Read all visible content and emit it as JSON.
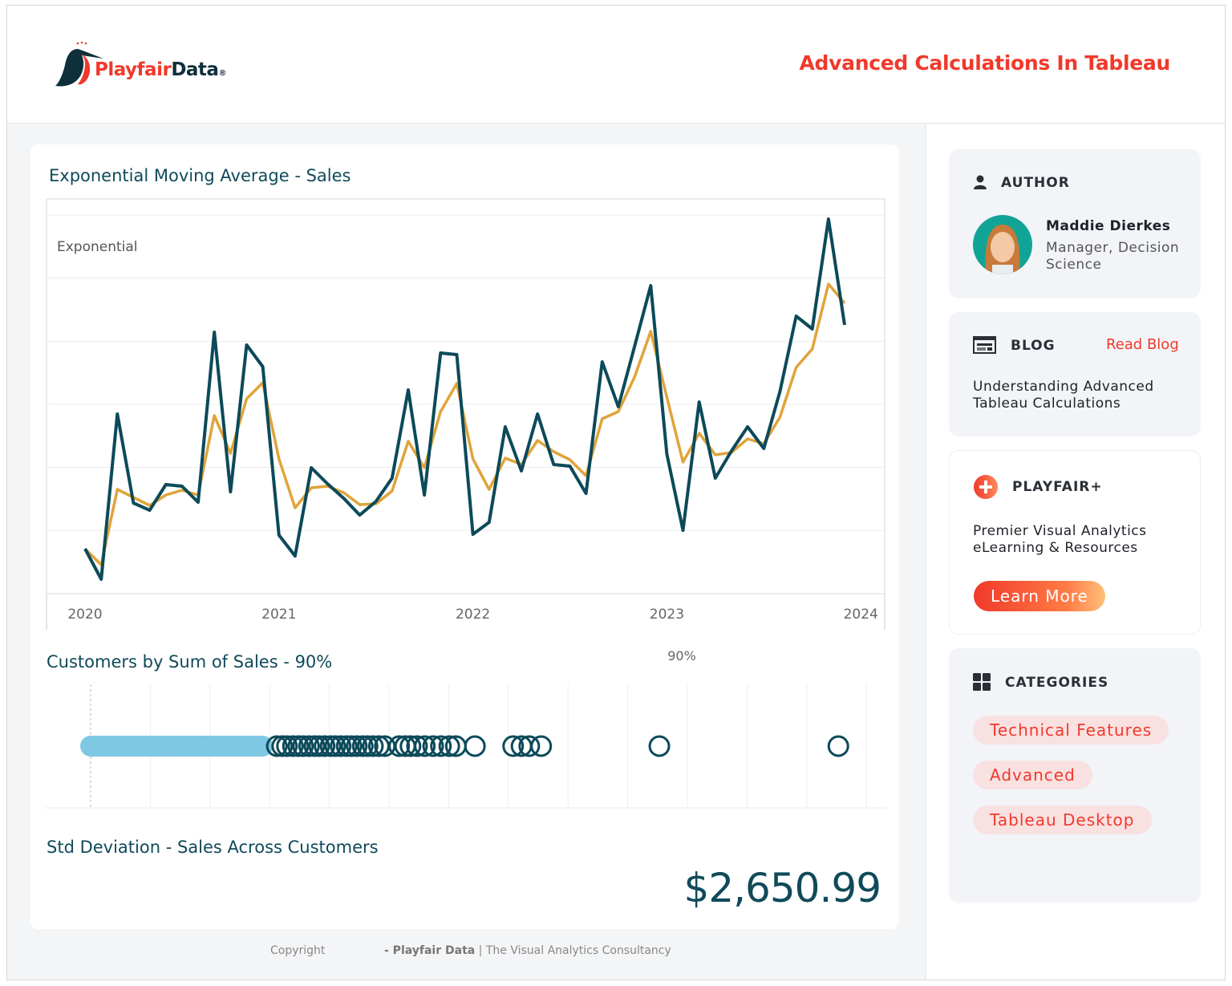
{
  "header": {
    "logo_text_a": "Playfair",
    "logo_text_b": "Data",
    "title": "Advanced Calculations In Tableau"
  },
  "colors": {
    "accent": "#f0392b",
    "dark_teal": "#0c4a5a",
    "orange": "#e0a43a",
    "light_blue": "#7ec8e3"
  },
  "ema": {
    "title": "Exponential Moving Average - Sales",
    "pane_label": "Exponential"
  },
  "chart_data": [
    {
      "type": "line",
      "title": "Exponential Moving Average - Sales",
      "xlabel": "",
      "ylabel": "",
      "x_ticks": [
        "2020",
        "2021",
        "2022",
        "2023",
        "2024"
      ],
      "x_start": "2020-01",
      "x_end": "2023-12",
      "ylim": [
        0,
        492
      ],
      "grid": true,
      "series": [
        {
          "name": "Sales",
          "color": "#0c4a5a",
          "values": [
            56,
            18,
            224,
            113,
            104,
            136,
            134,
            114,
            326,
            127,
            310,
            283,
            73,
            47,
            157,
            137,
            119,
            98,
            115,
            144,
            254,
            123,
            300,
            298,
            74,
            89,
            208,
            153,
            224,
            161,
            159,
            125,
            289,
            233,
            308,
            384,
            174,
            79,
            239,
            144,
            178,
            208,
            181,
            252,
            346,
            330,
            467,
            335
          ]
        },
        {
          "name": "Exponential",
          "color": "#e0a43a",
          "values": [
            56,
            36,
            130,
            120,
            110,
            123,
            129,
            123,
            222,
            175,
            243,
            263,
            168,
            107,
            132,
            134,
            126,
            111,
            112,
            128,
            190,
            157,
            227,
            262,
            168,
            130,
            169,
            161,
            191,
            177,
            167,
            147,
            218,
            227,
            270,
            327,
            245,
            164,
            200,
            173,
            176,
            193,
            187,
            220,
            282,
            305,
            386,
            362
          ]
        }
      ]
    },
    {
      "type": "scatter",
      "title": "Customers by Sum of Sales - 90%",
      "reference_label": "90%",
      "xlim": [
        0,
        13
      ],
      "highlight_range": [
        0,
        2.88
      ],
      "values": [
        3.12,
        3.21,
        3.29,
        3.39,
        3.48,
        3.56,
        3.66,
        3.75,
        3.83,
        3.92,
        4.02,
        4.1,
        4.19,
        4.29,
        4.37,
        4.46,
        4.56,
        4.64,
        4.73,
        4.83,
        4.93,
        5.17,
        5.27,
        5.36,
        5.47,
        5.6,
        5.74,
        5.87,
        6.01,
        6.12,
        6.44,
        7.08,
        7.22,
        7.35,
        7.55,
        9.53,
        12.53
      ]
    }
  ],
  "stddev": {
    "title": "Std Deviation - Sales Across Customers",
    "value": "$2,650.99"
  },
  "footer": {
    "copyright": "Copyright",
    "brand": "- Playfair Data",
    "tagline": "| The Visual Analytics Consultancy"
  },
  "sidebar": {
    "author": {
      "heading": "AUTHOR",
      "name": "Maddie Dierkes",
      "role_line1": "Manager, Decision",
      "role_line2": "Science"
    },
    "blog": {
      "heading": "BLOG",
      "link": "Read Blog",
      "line1": "Understanding Advanced",
      "line2": "Tableau Calculations"
    },
    "playfair": {
      "heading": "PLAYFAIR+",
      "line1": "Premier Visual Analytics",
      "line2": "eLearning & Resources",
      "button": "Learn More"
    },
    "categories": {
      "heading": "CATEGORIES",
      "items": [
        "Technical Features",
        "Advanced",
        "Tableau Desktop"
      ]
    }
  }
}
